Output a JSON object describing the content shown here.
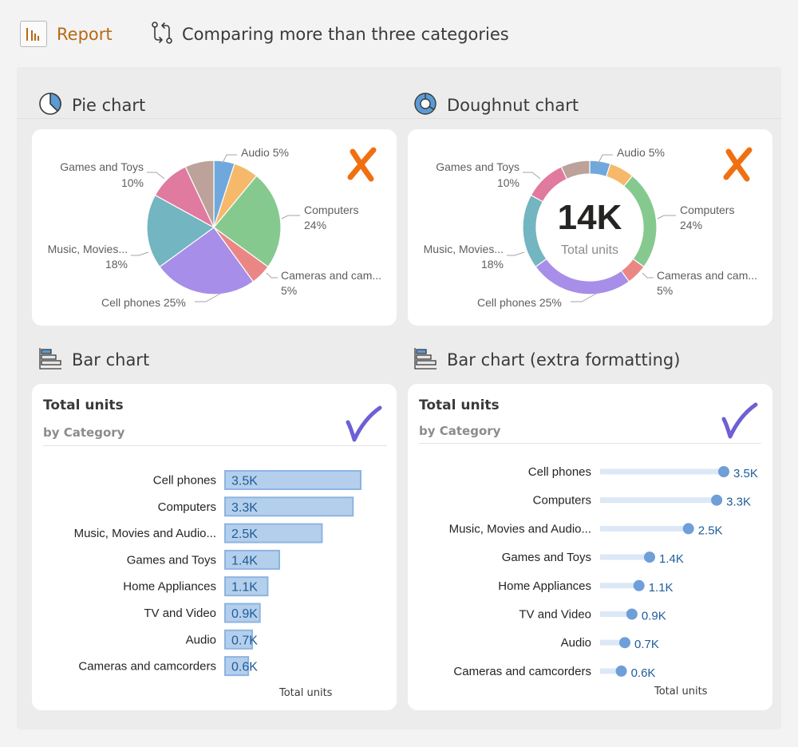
{
  "header": {
    "report_label": "Report",
    "breadcrumb_label": "Comparing more than three categories"
  },
  "sections": {
    "pie_title": "Pie chart",
    "doughnut_title": "Doughnut chart",
    "bar_title": "Bar chart",
    "bar_extra_title": "Bar chart (extra formatting)"
  },
  "colors": {
    "accent": "#b76a14",
    "bad_mark": "#f07011",
    "good_mark": "#6d5fd5",
    "bar_fill": "#b4cfec",
    "bar_stroke": "#8db4e2",
    "label_blue": "#1f5c99",
    "dot": "#6e9fd8",
    "lollipop_track": "#dce8f6"
  },
  "icons": {
    "report": "bar-chart-icon",
    "breadcrumb": "compare-arrows-icon",
    "pie": "pie-chart-icon",
    "doughnut": "doughnut-chart-icon",
    "bar": "bar-chart-horizontal-icon",
    "bad": "cross-mark-icon",
    "good": "check-mark-icon"
  },
  "doughnut_center": {
    "value": "14K",
    "label": "Total units"
  },
  "bar_card": {
    "title": "Total units",
    "subtitle": "by Category",
    "axis_caption": "Total units"
  },
  "bar_extra_card": {
    "title": "Total units",
    "subtitle": "by Category",
    "axis_caption": "Total units"
  },
  "chart_data": [
    {
      "type": "pie",
      "slices": [
        {
          "label": "Audio",
          "pct_label": "5%",
          "value": 5,
          "color": "#6fa8dc"
        },
        {
          "label": "",
          "pct_label": "",
          "value": 6,
          "color": "#f6b96b"
        },
        {
          "label": "Computers",
          "pct_label": "24%",
          "value": 24,
          "color": "#86c98f"
        },
        {
          "label": "Cameras and cam...",
          "pct_label": "5%",
          "value": 5,
          "color": "#ea8784"
        },
        {
          "label": "Cell phones",
          "pct_label": "25%",
          "value": 25,
          "color": "#a78ee8"
        },
        {
          "label": "Music, Movies...",
          "pct_label": "18%",
          "value": 18,
          "color": "#73b5c1"
        },
        {
          "label": "Games and Toys",
          "pct_label": "10%",
          "value": 10,
          "color": "#e07a9f"
        },
        {
          "label": "",
          "pct_label": "",
          "value": 7,
          "color": "#bca29b"
        }
      ]
    },
    {
      "type": "doughnut",
      "slices": [
        {
          "label": "Audio",
          "pct_label": "5%",
          "value": 5,
          "color": "#6fa8dc"
        },
        {
          "label": "",
          "pct_label": "",
          "value": 6,
          "color": "#f6b96b"
        },
        {
          "label": "Computers",
          "pct_label": "24%",
          "value": 24,
          "color": "#86c98f"
        },
        {
          "label": "Cameras and cam...",
          "pct_label": "5%",
          "value": 5,
          "color": "#ea8784"
        },
        {
          "label": "Cell phones",
          "pct_label": "25%",
          "value": 25,
          "color": "#a78ee8"
        },
        {
          "label": "Music, Movies...",
          "pct_label": "18%",
          "value": 18,
          "color": "#73b5c1"
        },
        {
          "label": "Games and Toys",
          "pct_label": "10%",
          "value": 10,
          "color": "#e07a9f"
        },
        {
          "label": "",
          "pct_label": "",
          "value": 7,
          "color": "#bca29b"
        }
      ]
    },
    {
      "type": "bar",
      "title": "Total units",
      "subtitle": "by Category",
      "xlabel": "Total units",
      "categories": [
        "Cell phones",
        "Computers",
        "Music, Movies and Audio...",
        "Games and Toys",
        "Home Appliances",
        "TV and Video",
        "Audio",
        "Cameras and camcorders"
      ],
      "values": [
        3.5,
        3.3,
        2.5,
        1.4,
        1.1,
        0.9,
        0.7,
        0.6
      ],
      "value_labels": [
        "3.5K",
        "3.3K",
        "2.5K",
        "1.4K",
        "1.1K",
        "0.9K",
        "0.7K",
        "0.6K"
      ],
      "units": "K"
    },
    {
      "type": "bar",
      "style": "lollipop",
      "title": "Total units",
      "subtitle": "by Category",
      "xlabel": "Total units",
      "categories": [
        "Cell phones",
        "Computers",
        "Music, Movies and Audio...",
        "Games and Toys",
        "Home Appliances",
        "TV and Video",
        "Audio",
        "Cameras and camcorders"
      ],
      "values": [
        3.5,
        3.3,
        2.5,
        1.4,
        1.1,
        0.9,
        0.7,
        0.6
      ],
      "value_labels": [
        "3.5K",
        "3.3K",
        "2.5K",
        "1.4K",
        "1.1K",
        "0.9K",
        "0.7K",
        "0.6K"
      ],
      "units": "K"
    }
  ]
}
